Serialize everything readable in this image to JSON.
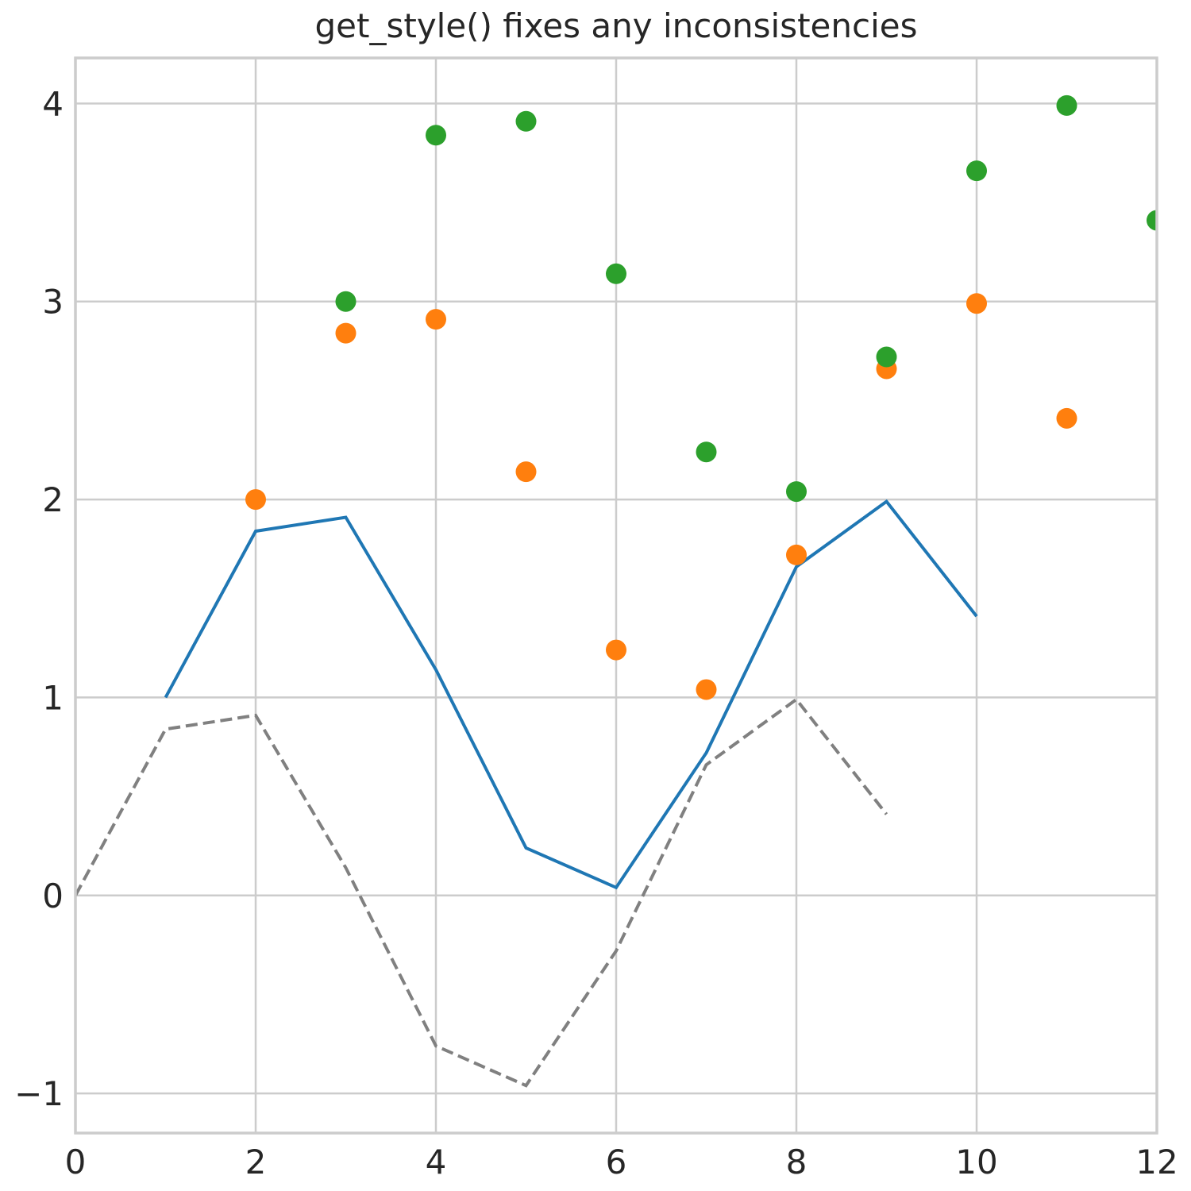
{
  "chart_data": {
    "type": "line",
    "title": "get_style() fixes any inconsistencies",
    "xlabel": "",
    "ylabel": "",
    "xlim": [
      0,
      12
    ],
    "ylim": [
      -1.2,
      4.23
    ],
    "xticks": [
      0,
      2,
      4,
      6,
      8,
      10,
      12
    ],
    "xtick_labels": [
      "0",
      "2",
      "4",
      "6",
      "8",
      "10",
      "12"
    ],
    "yticks": [
      -1,
      0,
      1,
      2,
      3,
      4
    ],
    "ytick_labels": [
      "−1",
      "0",
      "1",
      "2",
      "3",
      "4"
    ],
    "grid": true,
    "legend": null,
    "series": [
      {
        "name": "gray dashed line",
        "style": "line",
        "linestyle": "dashed",
        "color": "#808080",
        "x": [
          0,
          1,
          2,
          3,
          4,
          5,
          6,
          7,
          8,
          9
        ],
        "y": [
          0.0,
          0.84,
          0.91,
          0.14,
          -0.76,
          -0.96,
          -0.28,
          0.66,
          0.99,
          0.41
        ]
      },
      {
        "name": "blue solid line",
        "style": "line",
        "linestyle": "solid",
        "color": "#1f77b4",
        "x": [
          1,
          2,
          3,
          4,
          5,
          6,
          7,
          8,
          9,
          10
        ],
        "y": [
          1.0,
          1.84,
          1.91,
          1.14,
          0.24,
          0.04,
          0.72,
          1.66,
          1.99,
          1.41
        ]
      },
      {
        "name": "orange markers",
        "style": "scatter",
        "color": "#ff7f0e",
        "x": [
          2,
          3,
          4,
          5,
          6,
          7,
          8,
          9,
          10,
          11
        ],
        "y": [
          2.0,
          2.84,
          2.91,
          2.14,
          1.24,
          1.04,
          1.72,
          2.66,
          2.99,
          2.41
        ]
      },
      {
        "name": "green markers",
        "style": "scatter",
        "color": "#2ca02c",
        "x": [
          3,
          4,
          5,
          6,
          7,
          8,
          9,
          10,
          11,
          12
        ],
        "y": [
          3.0,
          3.84,
          3.91,
          3.14,
          2.24,
          2.04,
          2.72,
          3.66,
          3.99,
          3.41
        ]
      }
    ]
  },
  "style": {
    "grid_color": "#cccccc",
    "spine_color": "#cccccc",
    "text_color": "#262626",
    "background": "#ffffff"
  }
}
